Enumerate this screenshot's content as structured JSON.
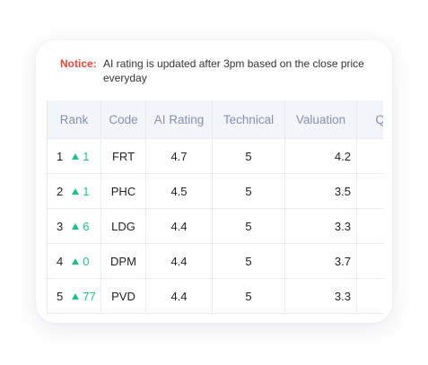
{
  "notice": {
    "label": "Notice:",
    "text": "AI rating is updated after 3pm based on the close price everyday"
  },
  "table": {
    "columns": [
      "Rank",
      "Code",
      "AI Rating",
      "Technical",
      "Valuation",
      "Qu"
    ],
    "rows": [
      {
        "rank": "1",
        "change": "1",
        "code": "FRT",
        "ai_rating": "4.7",
        "technical": "5",
        "valuation": "4.2"
      },
      {
        "rank": "2",
        "change": "1",
        "code": "PHC",
        "ai_rating": "4.5",
        "technical": "5",
        "valuation": "3.5"
      },
      {
        "rank": "3",
        "change": "6",
        "code": "LDG",
        "ai_rating": "4.4",
        "technical": "5",
        "valuation": "3.3"
      },
      {
        "rank": "4",
        "change": "0",
        "code": "DPM",
        "ai_rating": "4.4",
        "technical": "5",
        "valuation": "3.7"
      },
      {
        "rank": "5",
        "change": "77",
        "code": "PVD",
        "ai_rating": "4.4",
        "technical": "5",
        "valuation": "3.3"
      }
    ]
  }
}
